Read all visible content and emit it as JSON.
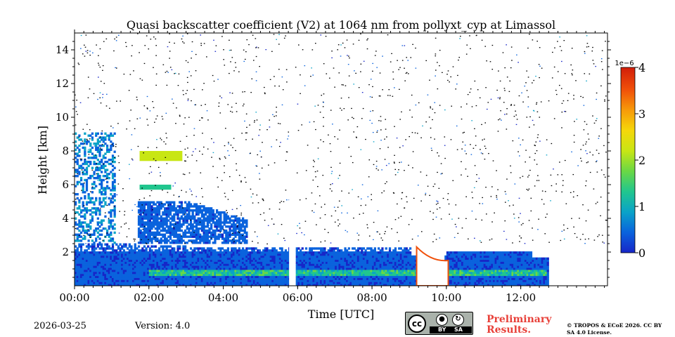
{
  "chart_data": {
    "type": "heatmap",
    "title": "Quasi backscatter coefficient (V2) at 1064 nm from pollyxt_cyp at Limassol",
    "xlabel": "Time [UTC]",
    "ylabel": "Height [km]",
    "xlim": [
      0,
      14.333
    ],
    "ylim": [
      0,
      15
    ],
    "x_ticks": [
      {
        "value": 0,
        "label": "00:00"
      },
      {
        "value": 2,
        "label": "02:00"
      },
      {
        "value": 4,
        "label": "04:00"
      },
      {
        "value": 6,
        "label": "06:00"
      },
      {
        "value": 8,
        "label": "08:00"
      },
      {
        "value": 10,
        "label": "10:00"
      },
      {
        "value": 12,
        "label": "12:00"
      }
    ],
    "y_ticks": [
      {
        "value": 2,
        "label": "2"
      },
      {
        "value": 4,
        "label": "4"
      },
      {
        "value": 6,
        "label": "6"
      },
      {
        "value": 8,
        "label": "8"
      },
      {
        "value": 10,
        "label": "10"
      },
      {
        "value": 12,
        "label": "12"
      },
      {
        "value": 14,
        "label": "14"
      }
    ],
    "colorbar": {
      "range": [
        0,
        4
      ],
      "scale_label": "1e−6",
      "ticks": [
        {
          "value": 0,
          "label": "0"
        },
        {
          "value": 1,
          "label": "1"
        },
        {
          "value": 2,
          "label": "2"
        },
        {
          "value": 3,
          "label": "3"
        },
        {
          "value": 4,
          "label": "4"
        }
      ],
      "colors": [
        "#1726c8",
        "#0a63dd",
        "#0aa3c8",
        "#21c68e",
        "#6ad845",
        "#c8e614",
        "#f5d70a",
        "#f79a0a",
        "#f0500a",
        "#d21e0a"
      ]
    },
    "aerosol_layers": [
      {
        "name": "boundary layer",
        "t_start": 0,
        "t_end": 12.75,
        "top_km": 2.4,
        "mean_value": 0.3
      },
      {
        "name": "elevated dust layer",
        "t_start": 1.7,
        "t_end": 4.6,
        "base_km": 2.5,
        "top_km": 5.0,
        "mean_value": 0.25
      },
      {
        "name": "enhanced layer",
        "t_start": 2.0,
        "t_end": 12.7,
        "base_km": 0.5,
        "top_km": 1.0,
        "mean_value": 1.2
      }
    ],
    "clouds": [
      {
        "t_start": 1.75,
        "t_end": 2.9,
        "base_km": 5.9,
        "top_km": 8.0
      },
      {
        "t_start": 9.2,
        "t_end": 10.0,
        "base_km": 0,
        "top_km": 2.3
      }
    ],
    "data_gaps": [
      {
        "t_start": 5.77,
        "t_end": 5.9
      }
    ]
  },
  "footer": {
    "date": "2026-03-25",
    "version": "Version: 4.0",
    "license_badge": {
      "cc": "cc",
      "by": "BY",
      "sa": "SA"
    },
    "preliminary": "Preliminary Results.",
    "copyright": "© TROPOS & ECoE 2026. CC BY SA 4.0 License."
  }
}
